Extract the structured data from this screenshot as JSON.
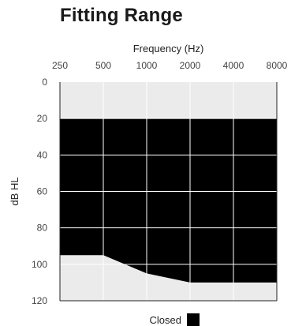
{
  "chart_data": {
    "type": "area",
    "title": "Fitting Range",
    "xlabel": "Frequency (Hz)",
    "ylabel": "dB HL",
    "x_scale": "log2",
    "x_ticks": [
      "250",
      "500",
      "1000",
      "2000",
      "4000",
      "8000"
    ],
    "y_ticks": [
      "0",
      "20",
      "40",
      "60",
      "80",
      "100",
      "120"
    ],
    "xlim": [
      250,
      8000
    ],
    "ylim": [
      0,
      120
    ],
    "y_inverted": true,
    "grid": true,
    "legend_position": "bottom",
    "colors": {
      "background": "#ebebeb",
      "fill": "#000000",
      "grid": "#ffffff"
    },
    "series": [
      {
        "name": "Closed",
        "upper": [
          {
            "x": 250,
            "y": 20
          },
          {
            "x": 500,
            "y": 20
          },
          {
            "x": 1000,
            "y": 20
          },
          {
            "x": 2000,
            "y": 20
          },
          {
            "x": 4000,
            "y": 20
          },
          {
            "x": 8000,
            "y": 20
          }
        ],
        "lower": [
          {
            "x": 250,
            "y": 95
          },
          {
            "x": 500,
            "y": 95
          },
          {
            "x": 1000,
            "y": 105
          },
          {
            "x": 2000,
            "y": 110
          },
          {
            "x": 4000,
            "y": 110
          },
          {
            "x": 8000,
            "y": 110
          }
        ]
      }
    ]
  }
}
